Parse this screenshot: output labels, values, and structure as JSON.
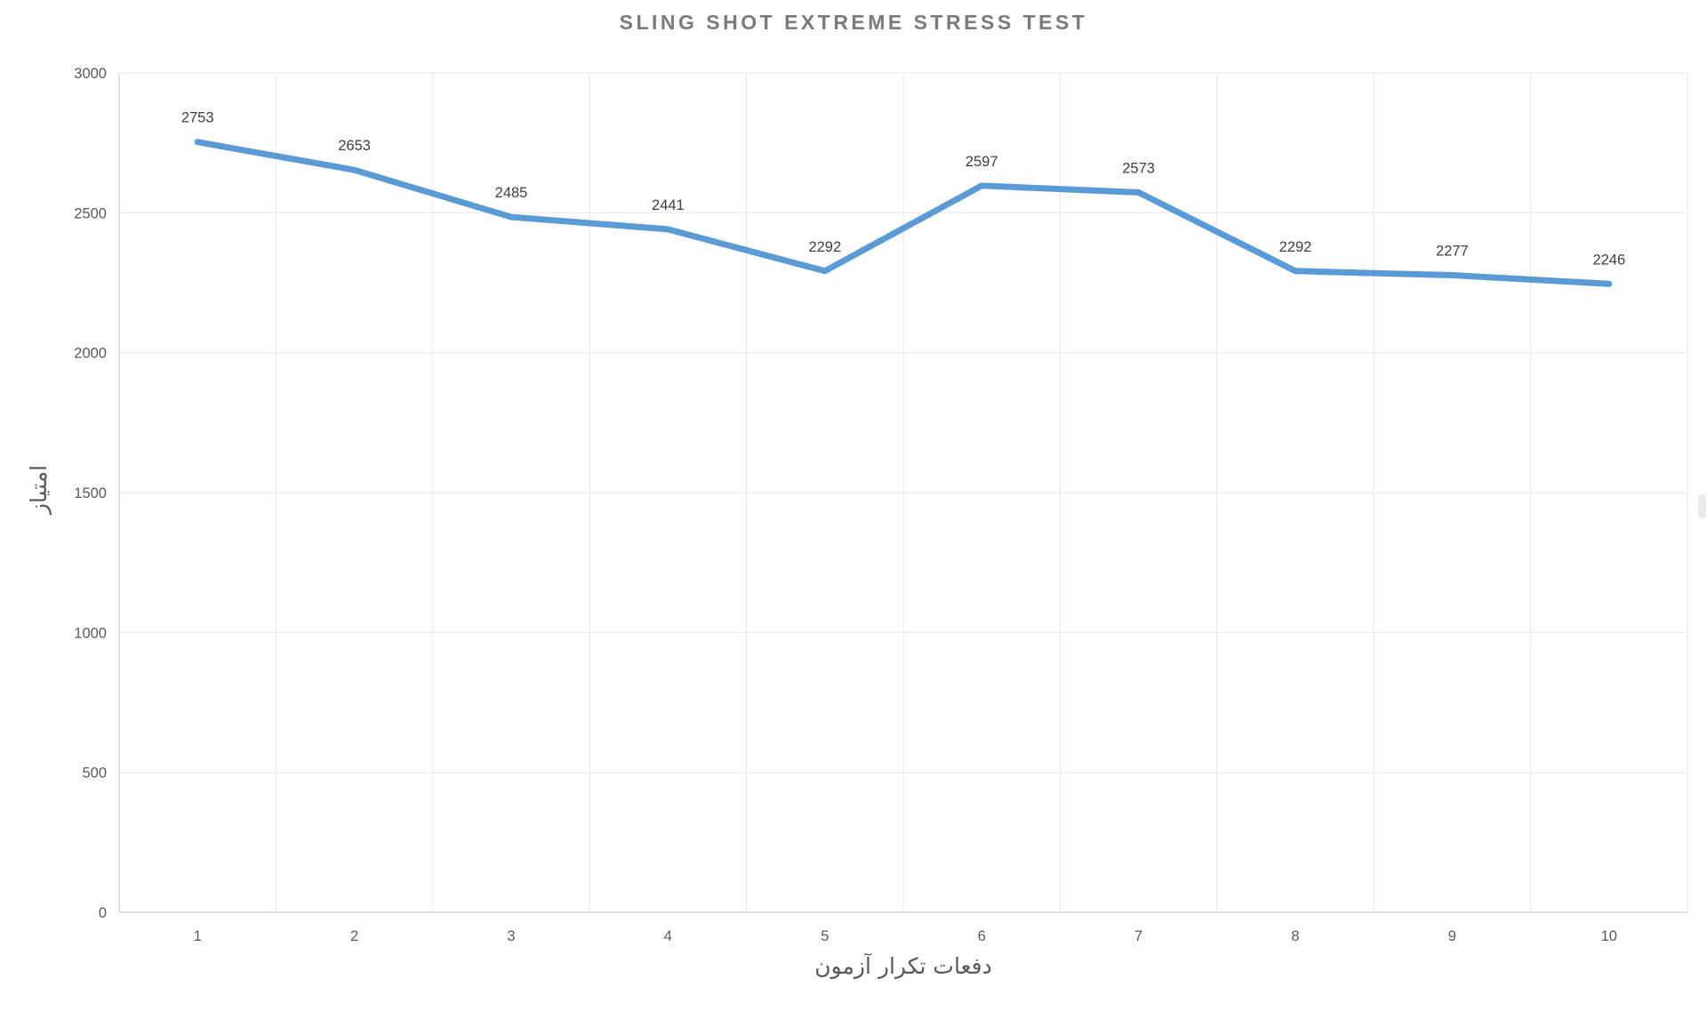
{
  "title": "SLING SHOT EXTREME STRESS TEST",
  "chart_data": {
    "type": "line",
    "title": "SLING SHOT EXTREME STRESS TEST",
    "x": [
      1,
      2,
      3,
      4,
      5,
      6,
      7,
      8,
      9,
      10
    ],
    "series": [
      {
        "name": "score",
        "values": [
          2753,
          2653,
          2485,
          2441,
          2292,
          2597,
          2573,
          2292,
          2277,
          2246
        ]
      }
    ],
    "data_labels": [
      "2753",
      "2653",
      "2485",
      "2441",
      "2292",
      "2597",
      "2573",
      "2292",
      "2277",
      "2246"
    ],
    "xlabel": "دفعات تکرار آزمون",
    "ylabel": "امتیاز",
    "ylim": [
      0,
      3000
    ],
    "ytick_step": 500,
    "ytick_labels": [
      "0",
      "500",
      "1000",
      "1500",
      "2000",
      "2500",
      "3000"
    ],
    "grid": true,
    "legend": "none",
    "colors": {
      "line": "#5B9BD5",
      "gridline": "#ededed",
      "axis_line": "#d6d6d6",
      "tick_label": "#595959",
      "data_label": "#404040",
      "title": "#7b7b7b",
      "background": "#ffffff"
    }
  }
}
